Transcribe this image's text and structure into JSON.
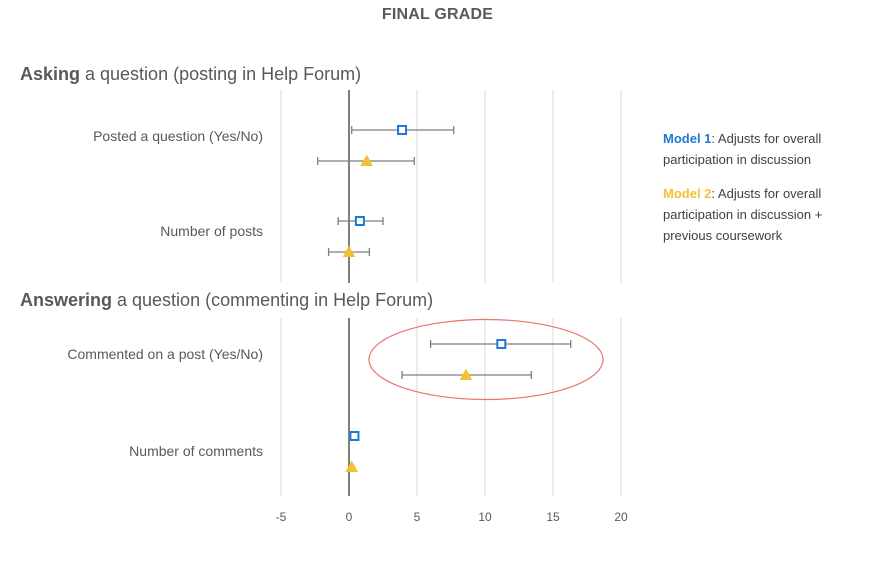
{
  "chart_data": {
    "type": "scatter",
    "title": "FINAL GRADE",
    "xlim": [
      -5,
      20
    ],
    "x_ticks": [
      "-5",
      "0",
      "5",
      "10",
      "15",
      "20"
    ],
    "grid": "vertical",
    "sections": [
      {
        "heading_bold": "Asking",
        "heading_rest": " a question (posting in Help Forum)",
        "rows": [
          {
            "label": "Posted a question (Yes/No)",
            "estimates": [
              {
                "model": "Model 1",
                "value": 3.9,
                "low": 0.2,
                "high": 7.7
              },
              {
                "model": "Model 2",
                "value": 1.3,
                "low": -2.3,
                "high": 4.8
              }
            ]
          },
          {
            "label": "Number of posts",
            "estimates": [
              {
                "model": "Model 1",
                "value": 0.8,
                "low": -0.8,
                "high": 2.5
              },
              {
                "model": "Model 2",
                "value": 0.0,
                "low": -1.5,
                "high": 1.5
              }
            ]
          }
        ]
      },
      {
        "heading_bold": "Answering",
        "heading_rest": " a question (commenting in Help Forum)",
        "rows": [
          {
            "label": "Commented on a post (Yes/No)",
            "estimates": [
              {
                "model": "Model 1",
                "value": 11.2,
                "low": 6.0,
                "high": 16.3
              },
              {
                "model": "Model 2",
                "value": 8.6,
                "low": 3.9,
                "high": 13.4
              }
            ]
          },
          {
            "label": "Number of comments",
            "estimates": [
              {
                "model": "Model 1",
                "value": 0.4,
                "low": 0.4,
                "high": 0.4
              },
              {
                "model": "Model 2",
                "value": 0.2,
                "low": 0.2,
                "high": 0.2
              }
            ]
          }
        ]
      }
    ],
    "legend": {
      "placement": "right",
      "entries": [
        {
          "model": "Model 1",
          "marker": "square",
          "color": "#1F77D6",
          "text": ": Adjusts for overall participation in discussion"
        },
        {
          "model": "Model 2",
          "marker": "triangle",
          "color": "#F5C033",
          "text": ": Adjusts for overall participation in discussion + previous coursework"
        }
      ]
    },
    "highlight": {
      "shape": "ellipse",
      "row": "Commented on a post (Yes/No)",
      "color": "#E8756F"
    },
    "colors": {
      "axis": "#7F7F7F",
      "grid": "#D9D9D9",
      "errorbar": "#7F7F7F",
      "text": "#595959"
    }
  }
}
